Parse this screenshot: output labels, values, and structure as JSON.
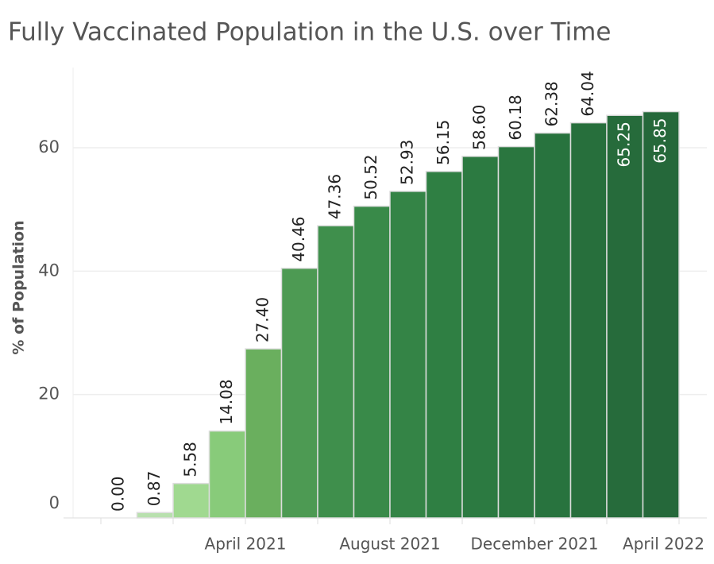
{
  "chart_data": {
    "type": "bar",
    "title": "Fully Vaccinated Population in the U.S. over Time",
    "y_label": "% of Population",
    "values": [
      0,
      0.87,
      5.58,
      14.08,
      27.4,
      40.46,
      47.36,
      50.52,
      52.93,
      56.15,
      58.6,
      60.18,
      62.38,
      64.04,
      65.25,
      65.85
    ],
    "value_labels": [
      "0.00",
      "0.87",
      "5.58",
      "14.08",
      "27.40",
      "40.46",
      "47.36",
      "50.52",
      "52.93",
      "56.15",
      "58.60",
      "60.18",
      "62.38",
      "64.04",
      "65.25",
      "65.85"
    ],
    "colors": [
      "#c8e6c0",
      "#b8e0ae",
      "#a0d990",
      "#88cb7a",
      "#6aaf5e",
      "#4d9a53",
      "#3f8f4c",
      "#398a49",
      "#348446",
      "#2f7f43",
      "#2c7a41",
      "#2a763f",
      "#28733e",
      "#276f3c",
      "#266b3b",
      "#25683a"
    ],
    "xtick_labels": [
      "April 2021",
      "August 2021",
      "December 2021",
      "April 2022"
    ],
    "ylim": [
      0,
      73
    ],
    "yticks": [
      0,
      20,
      40,
      60
    ],
    "grid": true
  }
}
